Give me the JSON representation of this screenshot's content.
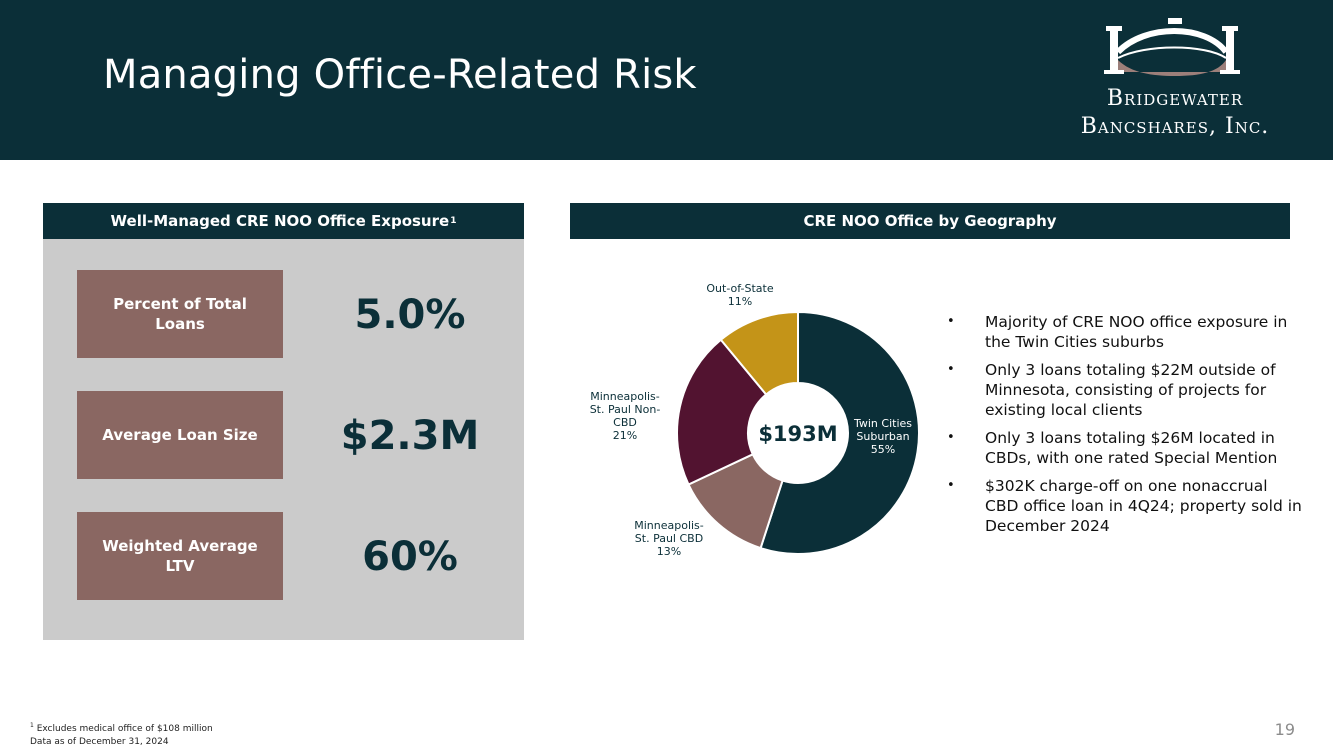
{
  "header": {
    "title": "Managing Office-Related Risk",
    "logo": {
      "line1": "Bridgewater",
      "line2": "Bancshares, Inc."
    }
  },
  "left_panel": {
    "title": "Well-Managed CRE NOO Office Exposure",
    "title_footnote_mark": "1",
    "metrics": [
      {
        "label": "Percent of Total Loans",
        "value": "5.0%"
      },
      {
        "label": "Average Loan Size",
        "value": "$2.3M"
      },
      {
        "label": "Weighted Average LTV",
        "value": "60%"
      }
    ]
  },
  "right_panel": {
    "title": "CRE NOO Office by Geography",
    "bullets": [
      "Majority of CRE NOO office exposure in the Twin Cities suburbs",
      "Only 3 loans totaling $22M outside of Minnesota, consisting of projects for existing local clients",
      "Only 3 loans totaling $26M located in CBDs, with one rated Special Mention",
      "$302K charge-off on one nonaccrual CBD office loan in 4Q24; property sold in December 2024"
    ],
    "bullet_glyph": "•"
  },
  "chart_data": {
    "type": "pie",
    "variant": "donut",
    "center_label": "$193M",
    "slices": [
      {
        "label": "Twin Cities Suburban",
        "value": 55,
        "value_label": "55%",
        "color": "#0b2f38"
      },
      {
        "label": "Minneapolis-St. Paul CBD",
        "value": 13,
        "value_label": "13%",
        "color": "#8a6762"
      },
      {
        "label": "Minneapolis-St. Paul Non-CBD",
        "value": 21,
        "value_label": "21%",
        "color": "#521330"
      },
      {
        "label": "Out-of-State",
        "value": 11,
        "value_label": "11%",
        "color": "#c49418"
      }
    ]
  },
  "footnote": {
    "mark": "1",
    "line1": "Excludes medical office of $108 million",
    "line2": "Data as of December 31, 2024"
  },
  "page_number": "19"
}
